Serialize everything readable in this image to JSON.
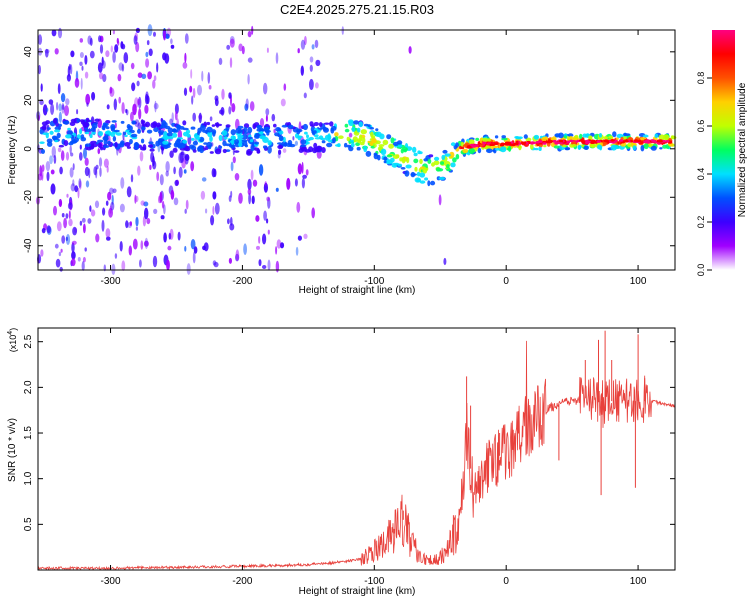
{
  "title": "C2E4.2025.275.21.15.R03",
  "chart_data": [
    {
      "type": "heatmap",
      "name": "spectrogram",
      "xlabel": "Height of straight line (km)",
      "ylabel": "Frequency (Hz)",
      "xlim": [
        -355,
        128
      ],
      "ylim": [
        -50,
        49
      ],
      "xticks": [
        -300,
        -200,
        -100,
        0,
        100
      ],
      "yticks": [
        -40,
        -20,
        0,
        20,
        40
      ],
      "colorbar": {
        "label": "Normalized spectral amplitude",
        "range": [
          0.0,
          1.0
        ],
        "ticks": [
          0.0,
          0.2,
          0.4,
          0.6,
          0.8
        ],
        "tick_labels": [
          "0.0",
          "0.2",
          "0.4",
          "0.6",
          "0.8"
        ],
        "colors": [
          "#ffffff",
          "#a000ff",
          "#3c00ff",
          "#0050ff",
          "#00e0ff",
          "#00ff60",
          "#c0ff00",
          "#ffd000",
          "#ff5000",
          "#ff0000",
          "#ff0080"
        ]
      },
      "ridge": [
        {
          "x": -350,
          "y": 6
        },
        {
          "x": -300,
          "y": 6
        },
        {
          "x": -250,
          "y": 5
        },
        {
          "x": -200,
          "y": 4
        },
        {
          "x": -150,
          "y": 5
        },
        {
          "x": -120,
          "y": 6
        },
        {
          "x": -100,
          "y": 3
        },
        {
          "x": -80,
          "y": -3
        },
        {
          "x": -60,
          "y": -9
        },
        {
          "x": -45,
          "y": -6
        },
        {
          "x": -35,
          "y": 0
        },
        {
          "x": -20,
          "y": 2
        },
        {
          "x": 0,
          "y": 2
        },
        {
          "x": 50,
          "y": 3
        },
        {
          "x": 100,
          "y": 3
        },
        {
          "x": 125,
          "y": 3
        }
      ]
    },
    {
      "type": "line",
      "name": "snr",
      "xlabel": "Height of straight line (km)",
      "ylabel": "SNR (10 * v/v)",
      "multiplier": "(x10",
      "multiplier_exp": "4",
      "multiplier_close": ")",
      "xlim": [
        -355,
        128
      ],
      "ylim": [
        0.0,
        2.65
      ],
      "xticks": [
        -300,
        -200,
        -100,
        0,
        100
      ],
      "yticks": [
        0.5,
        1.0,
        1.5,
        2.0,
        2.5
      ],
      "ytick_labels": [
        "0.5",
        "1.0",
        "1.5",
        "2.0",
        "2.5"
      ],
      "color": "#e8413c",
      "series": [
        {
          "x": -355,
          "y": 0.02
        },
        {
          "x": -300,
          "y": 0.02
        },
        {
          "x": -250,
          "y": 0.03
        },
        {
          "x": -200,
          "y": 0.04
        },
        {
          "x": -170,
          "y": 0.05
        },
        {
          "x": -150,
          "y": 0.06
        },
        {
          "x": -130,
          "y": 0.08
        },
        {
          "x": -110,
          "y": 0.12
        },
        {
          "x": -95,
          "y": 0.25
        },
        {
          "x": -85,
          "y": 0.4
        },
        {
          "x": -78,
          "y": 0.55
        },
        {
          "x": -72,
          "y": 0.3
        },
        {
          "x": -65,
          "y": 0.15
        },
        {
          "x": -55,
          "y": 0.1
        },
        {
          "x": -45,
          "y": 0.2
        },
        {
          "x": -35,
          "y": 0.5
        },
        {
          "x": -30,
          "y": 1.5
        },
        {
          "x": -25,
          "y": 0.85
        },
        {
          "x": -20,
          "y": 0.95
        },
        {
          "x": -15,
          "y": 1.1
        },
        {
          "x": -10,
          "y": 1.2
        },
        {
          "x": 0,
          "y": 1.3
        },
        {
          "x": 10,
          "y": 1.45
        },
        {
          "x": 20,
          "y": 1.6
        },
        {
          "x": 30,
          "y": 1.75
        },
        {
          "x": 40,
          "y": 1.82
        },
        {
          "x": 50,
          "y": 1.85
        },
        {
          "x": 60,
          "y": 1.88
        },
        {
          "x": 70,
          "y": 1.85
        },
        {
          "x": 80,
          "y": 1.85
        },
        {
          "x": 90,
          "y": 1.85
        },
        {
          "x": 100,
          "y": 1.85
        },
        {
          "x": 110,
          "y": 1.85
        },
        {
          "x": 120,
          "y": 1.82
        },
        {
          "x": 128,
          "y": 1.8
        }
      ],
      "noise_bursts": [
        {
          "x": -85,
          "y": 0.45
        },
        {
          "x": -78,
          "y": 0.65
        },
        {
          "x": -40,
          "y": 0.6
        },
        {
          "x": -30,
          "y": 2.12
        },
        {
          "x": -27,
          "y": 1.8
        },
        {
          "x": -5,
          "y": 1.5
        },
        {
          "x": 10,
          "y": 1.45
        },
        {
          "x": 60,
          "y": 2.3
        },
        {
          "x": 70,
          "y": 2.52
        },
        {
          "x": 75,
          "y": 2.62
        },
        {
          "x": 80,
          "y": 2.3
        },
        {
          "x": 100,
          "y": 2.58
        },
        {
          "x": 105,
          "y": 2.1
        },
        {
          "x": 72,
          "y": 0.82
        },
        {
          "x": 98,
          "y": 0.9
        },
        {
          "x": 40,
          "y": 1.2
        }
      ]
    }
  ]
}
